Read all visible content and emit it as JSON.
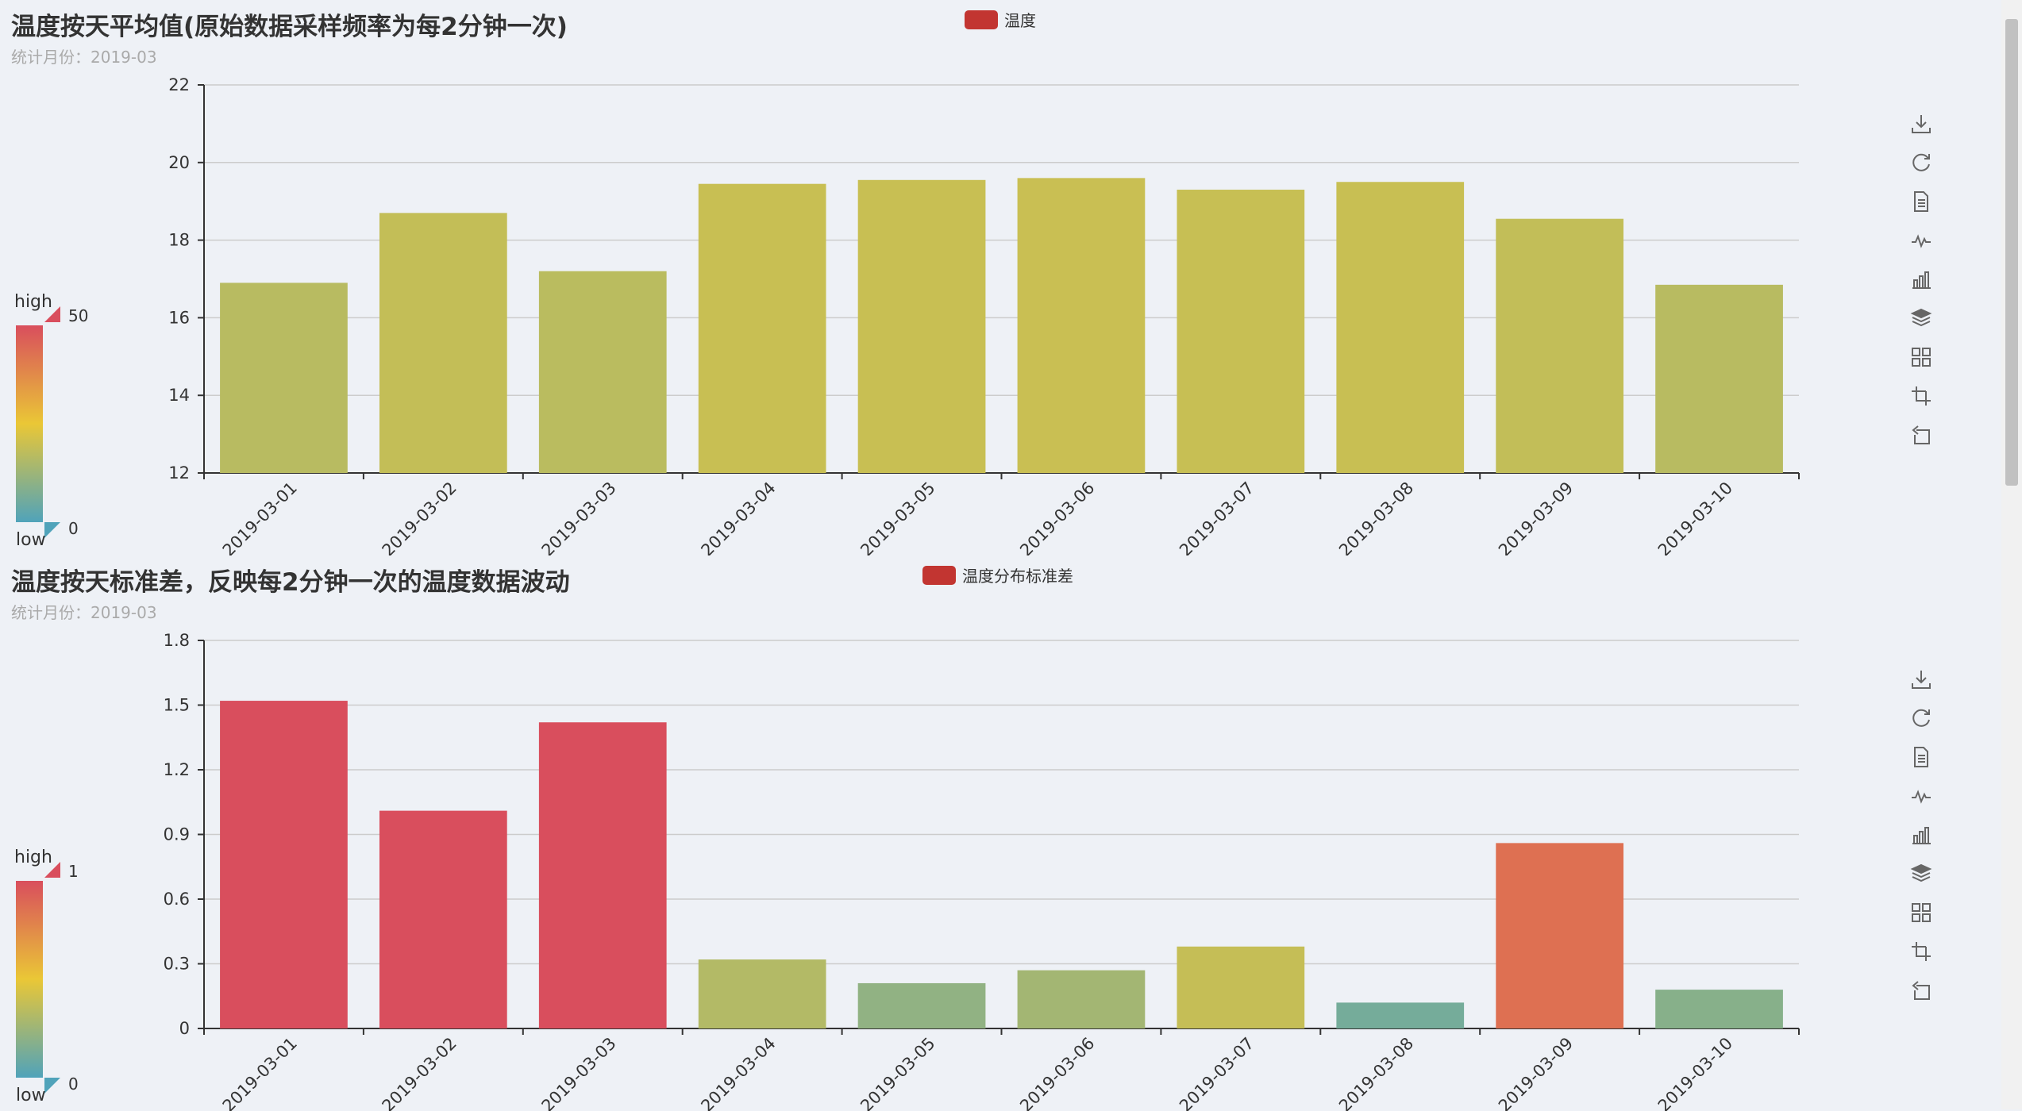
{
  "charts": [
    {
      "title": "温度按天平均值(原始数据采样频率为每2分钟一次)",
      "subtitle": "统计月份：2019-03",
      "legend": "温度",
      "visual_map": {
        "high": "high",
        "low": "low",
        "max": "50",
        "min": "0"
      }
    },
    {
      "title": "温度按天标准差，反映每2分钟一次的温度数据波动",
      "subtitle": "统计月份：2019-03",
      "legend": "温度分布标准差",
      "visual_map": {
        "high": "high",
        "low": "low",
        "max": "1",
        "min": "0"
      }
    }
  ],
  "toolbox_icons": [
    "download-icon",
    "refresh-icon",
    "data-view-icon",
    "line-chart-icon",
    "bar-chart-icon",
    "stack-icon",
    "tiled-icon",
    "zoom-icon",
    "zoom-reset-icon"
  ],
  "chart_data": [
    {
      "type": "bar",
      "title": "温度按天平均值(原始数据采样频率为每2分钟一次)",
      "subtitle": "统计月份：2019-03",
      "categories": [
        "2019-03-01",
        "2019-03-02",
        "2019-03-03",
        "2019-03-04",
        "2019-03-05",
        "2019-03-06",
        "2019-03-07",
        "2019-03-08",
        "2019-03-09",
        "2019-03-10"
      ],
      "series": [
        {
          "name": "温度",
          "values": [
            16.9,
            18.7,
            17.2,
            19.45,
            19.55,
            19.6,
            19.3,
            19.5,
            18.55,
            16.85
          ]
        }
      ],
      "ylim": [
        12,
        22
      ],
      "yticks": [
        "12",
        "14",
        "16",
        "18",
        "20",
        "22"
      ],
      "visual_map": {
        "min": 0,
        "max": 50,
        "colors": [
          "#50a3ba",
          "#eac736",
          "#d94e5d"
        ]
      },
      "grid": true,
      "legend_position": "top-center"
    },
    {
      "type": "bar",
      "title": "温度按天标准差，反映每2分钟一次的温度数据波动",
      "subtitle": "统计月份：2019-03",
      "categories": [
        "2019-03-01",
        "2019-03-02",
        "2019-03-03",
        "2019-03-04",
        "2019-03-05",
        "2019-03-06",
        "2019-03-07",
        "2019-03-08",
        "2019-03-09",
        "2019-03-10"
      ],
      "series": [
        {
          "name": "温度分布标准差",
          "values": [
            1.52,
            1.01,
            1.42,
            0.32,
            0.21,
            0.27,
            0.38,
            0.12,
            0.86,
            0.18
          ]
        }
      ],
      "ylim": [
        0,
        1.8
      ],
      "yticks": [
        "0",
        "0.3",
        "0.6",
        "0.9",
        "1.2",
        "1.5",
        "1.8"
      ],
      "visual_map": {
        "min": 0,
        "max": 1,
        "colors": [
          "#50a3ba",
          "#eac736",
          "#d94e5d"
        ]
      },
      "grid": true,
      "legend_position": "top-center"
    }
  ]
}
